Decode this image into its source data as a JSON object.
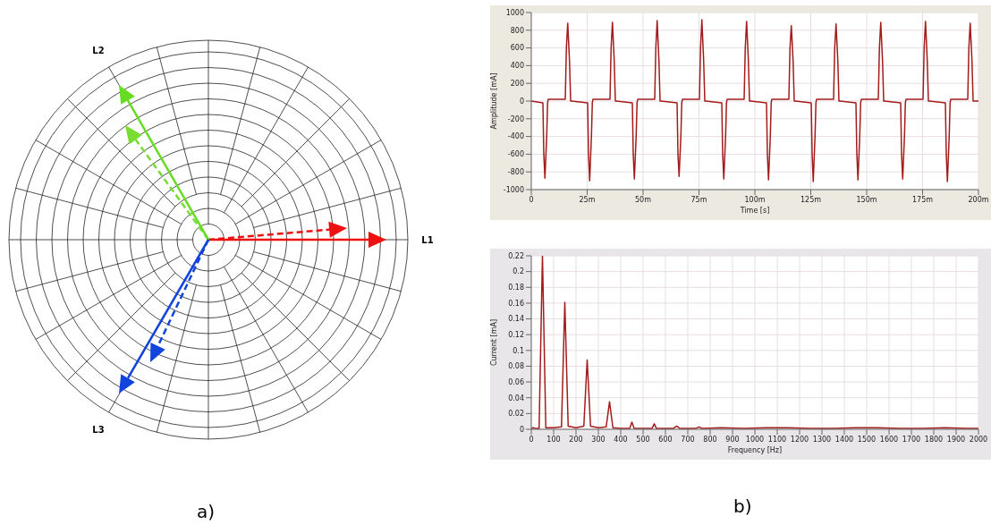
{
  "chart_data": [
    {
      "type": "other",
      "annotations": [
        "L1",
        "L2",
        "L3",
        "a)"
      ]
    },
    {
      "type": "line",
      "xlabel": "Time [s]",
      "ylabel": "Amplitude [mA]",
      "color": "#a31c1c",
      "grid": true,
      "xlim": [
        0,
        200
      ],
      "xticks": [
        0,
        {
          "value": 25,
          "label": "25m"
        },
        {
          "value": 50,
          "label": "50m"
        },
        {
          "value": 75,
          "label": "75m"
        },
        {
          "value": 100,
          "label": "100m"
        },
        {
          "value": 125,
          "label": "125m"
        },
        {
          "value": 150,
          "label": "150m"
        },
        {
          "value": 175,
          "label": "175m"
        },
        {
          "value": 200,
          "label": "200m"
        }
      ],
      "ylim": [
        -1000,
        1000
      ],
      "yticks": [
        -1000,
        -800,
        -600,
        -400,
        -200,
        0,
        200,
        400,
        600,
        800,
        1000
      ],
      "x": [
        0,
        5.2,
        5.6,
        6.1,
        6.9,
        7.3,
        7.6,
        15.2,
        15.7,
        16.3,
        17.1,
        17.6,
        18,
        25.2,
        25.6,
        26.1,
        26.9,
        27.3,
        27.6,
        35.2,
        35.7,
        36.3,
        37.1,
        37.6,
        38,
        45.2,
        45.6,
        46.1,
        46.9,
        47.3,
        47.6,
        55.2,
        55.7,
        56.3,
        57.1,
        57.6,
        58,
        65.2,
        65.6,
        66.1,
        66.9,
        67.3,
        67.6,
        75.2,
        75.7,
        76.3,
        77.1,
        77.6,
        78,
        85.2,
        85.6,
        86.1,
        86.9,
        87.3,
        87.6,
        95.2,
        95.7,
        96.3,
        97.1,
        97.6,
        98,
        105.2,
        105.6,
        106.1,
        106.9,
        107.3,
        107.6,
        115.2,
        115.7,
        116.3,
        117.1,
        117.6,
        118,
        125.2,
        125.6,
        126.1,
        126.9,
        127.3,
        127.6,
        135.2,
        135.7,
        136.3,
        137.1,
        137.6,
        138,
        145.2,
        145.6,
        146.1,
        146.9,
        147.3,
        147.6,
        155.2,
        155.7,
        156.3,
        157.1,
        157.6,
        158,
        165.2,
        165.6,
        166.1,
        166.9,
        167.3,
        167.6,
        175.2,
        175.7,
        176.3,
        177.1,
        177.6,
        178,
        185.2,
        185.6,
        186.1,
        186.9,
        187.3,
        187.6,
        195.2,
        195.7,
        196.3,
        197.1,
        197.6,
        198,
        200
      ],
      "values": [
        0,
        -20,
        -600,
        -870,
        -400,
        -20,
        20,
        20,
        600,
        880,
        450,
        0,
        0,
        -20,
        -600,
        -900,
        -400,
        -20,
        20,
        20,
        600,
        890,
        450,
        0,
        0,
        -20,
        -600,
        -880,
        -400,
        -20,
        20,
        20,
        600,
        910,
        450,
        0,
        0,
        -20,
        -600,
        -850,
        -400,
        -20,
        20,
        20,
        600,
        920,
        450,
        0,
        0,
        -20,
        -600,
        -880,
        -400,
        -20,
        20,
        20,
        600,
        900,
        450,
        0,
        0,
        -20,
        -600,
        -890,
        -400,
        -20,
        20,
        20,
        600,
        850,
        450,
        0,
        0,
        -20,
        -600,
        -910,
        -400,
        -20,
        20,
        20,
        600,
        870,
        450,
        0,
        0,
        -20,
        -600,
        -890,
        -400,
        -20,
        20,
        20,
        600,
        890,
        450,
        0,
        0,
        -20,
        -600,
        -880,
        -400,
        -20,
        20,
        20,
        600,
        900,
        450,
        0,
        0,
        -20,
        -600,
        -910,
        -400,
        -20,
        20,
        20,
        600,
        880,
        450,
        0,
        0,
        0
      ]
    },
    {
      "type": "line",
      "xlabel": "Frequency [Hz]",
      "ylabel": "Current [mA]",
      "color": "#a31c1c",
      "grid": true,
      "annotations": [
        "b)"
      ],
      "xlim": [
        0,
        2000
      ],
      "xticks": [
        0,
        100,
        200,
        300,
        400,
        500,
        600,
        700,
        800,
        900,
        1000,
        1100,
        1200,
        1300,
        1400,
        1500,
        1600,
        1700,
        1800,
        1900,
        2000
      ],
      "ylim": [
        0,
        0.22
      ],
      "yticks": [
        0,
        0.02,
        0.04,
        0.06,
        0.08,
        0.1,
        0.12,
        0.14,
        0.16,
        0.18,
        0.2,
        0.22
      ],
      "x": [
        0,
        10,
        20,
        35,
        50,
        65,
        100,
        135,
        150,
        165,
        200,
        235,
        250,
        265,
        300,
        335,
        350,
        365,
        400,
        440,
        450,
        460,
        540,
        550,
        560,
        635,
        650,
        665,
        735,
        750,
        765,
        850,
        950,
        1050,
        1150,
        1250,
        1350,
        1450,
        1550,
        1650,
        1750,
        1850,
        1950,
        2000
      ],
      "values": [
        0.001,
        0.002,
        0.001,
        0.001,
        0.22,
        0.002,
        0.002,
        0.003,
        0.161,
        0.004,
        0.002,
        0.004,
        0.088,
        0.004,
        0.002,
        0.003,
        0.035,
        0.002,
        0.001,
        0.001,
        0.009,
        0.001,
        0.001,
        0.007,
        0.001,
        0.001,
        0.004,
        0.001,
        0.001,
        0.003,
        0.001,
        0.002,
        0.001,
        0.002,
        0.002,
        0.001,
        0.001,
        0.002,
        0.002,
        0.001,
        0.001,
        0.002,
        0.001,
        0.001
      ]
    }
  ]
}
